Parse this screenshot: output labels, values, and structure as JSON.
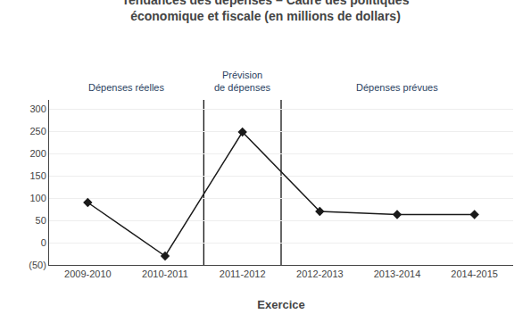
{
  "chart_data": {
    "type": "line",
    "title": "Tendances des dépenses – Cadre des politiques\néconomique et fiscale (en millions de dollars)",
    "xlabel": "Exercice",
    "categories": [
      "2009-2010",
      "2010-2011",
      "2011-2012",
      "2012-2013",
      "2013-2014",
      "2014-2015"
    ],
    "values": [
      90,
      -30,
      248,
      70,
      63,
      63
    ],
    "color": "#1a1a1a",
    "marker": "diamond",
    "ylim": [
      -50,
      320
    ],
    "yticks": [
      {
        "value": -50,
        "label": "(50)"
      },
      0,
      50,
      100,
      150,
      200,
      250,
      300
    ],
    "grid": true,
    "annotations": [
      {
        "text": "Dépenses réelles",
        "categories": [
          "2009-2010",
          "2010-2011"
        ]
      },
      {
        "text": "Prévision\nde dépenses",
        "categories": [
          "2011-2012"
        ]
      },
      {
        "text": "Dépenses prévues",
        "categories": [
          "2012-2013",
          "2013-2014",
          "2014-2015"
        ]
      }
    ]
  }
}
